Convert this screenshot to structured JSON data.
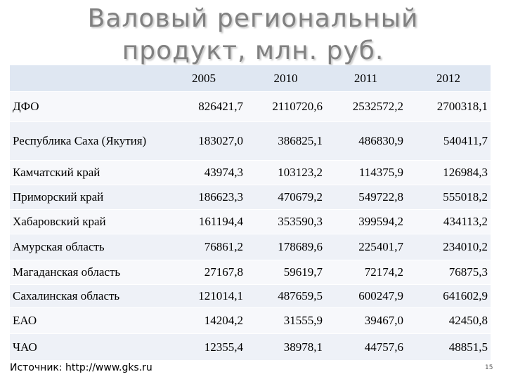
{
  "title": "Валовый региональный продукт, млн. руб.",
  "table": {
    "header": [
      "2005",
      "2010",
      "2011",
      "2012"
    ],
    "rows": [
      [
        "ДФО",
        "826421,7",
        "2110720,6",
        "2532572,2",
        "2700318,1"
      ],
      [
        "Республика Саха (Якутия)",
        "183027,0",
        "386825,1",
        "486830,9",
        "540411,7"
      ],
      [
        "Камчатский край",
        "43974,3",
        "103123,2",
        "114375,9",
        "126984,3"
      ],
      [
        "Приморский край",
        "186623,3",
        "470679,2",
        "549722,8",
        "555018,2"
      ],
      [
        "Хабаровский край",
        "161194,4",
        "353590,3",
        "399594,2",
        "434113,2"
      ],
      [
        "Амурская область",
        "76861,2",
        "178689,6",
        "225401,7",
        "234010,2"
      ],
      [
        "Магаданская область",
        "27167,8",
        "59619,7",
        "72174,2",
        "76875,3"
      ],
      [
        "Сахалинская область",
        "121014,1",
        "487659,5",
        "600247,9",
        "641602,9"
      ],
      [
        "ЕАО",
        "14204,2",
        "31555,9",
        "39467,0",
        "42450,8"
      ],
      [
        "ЧАО",
        "12355,4",
        "38978,1",
        "44757,6",
        "48851,5"
      ]
    ]
  },
  "source": "Источник: http://www.gks.ru",
  "page_number": "15"
}
